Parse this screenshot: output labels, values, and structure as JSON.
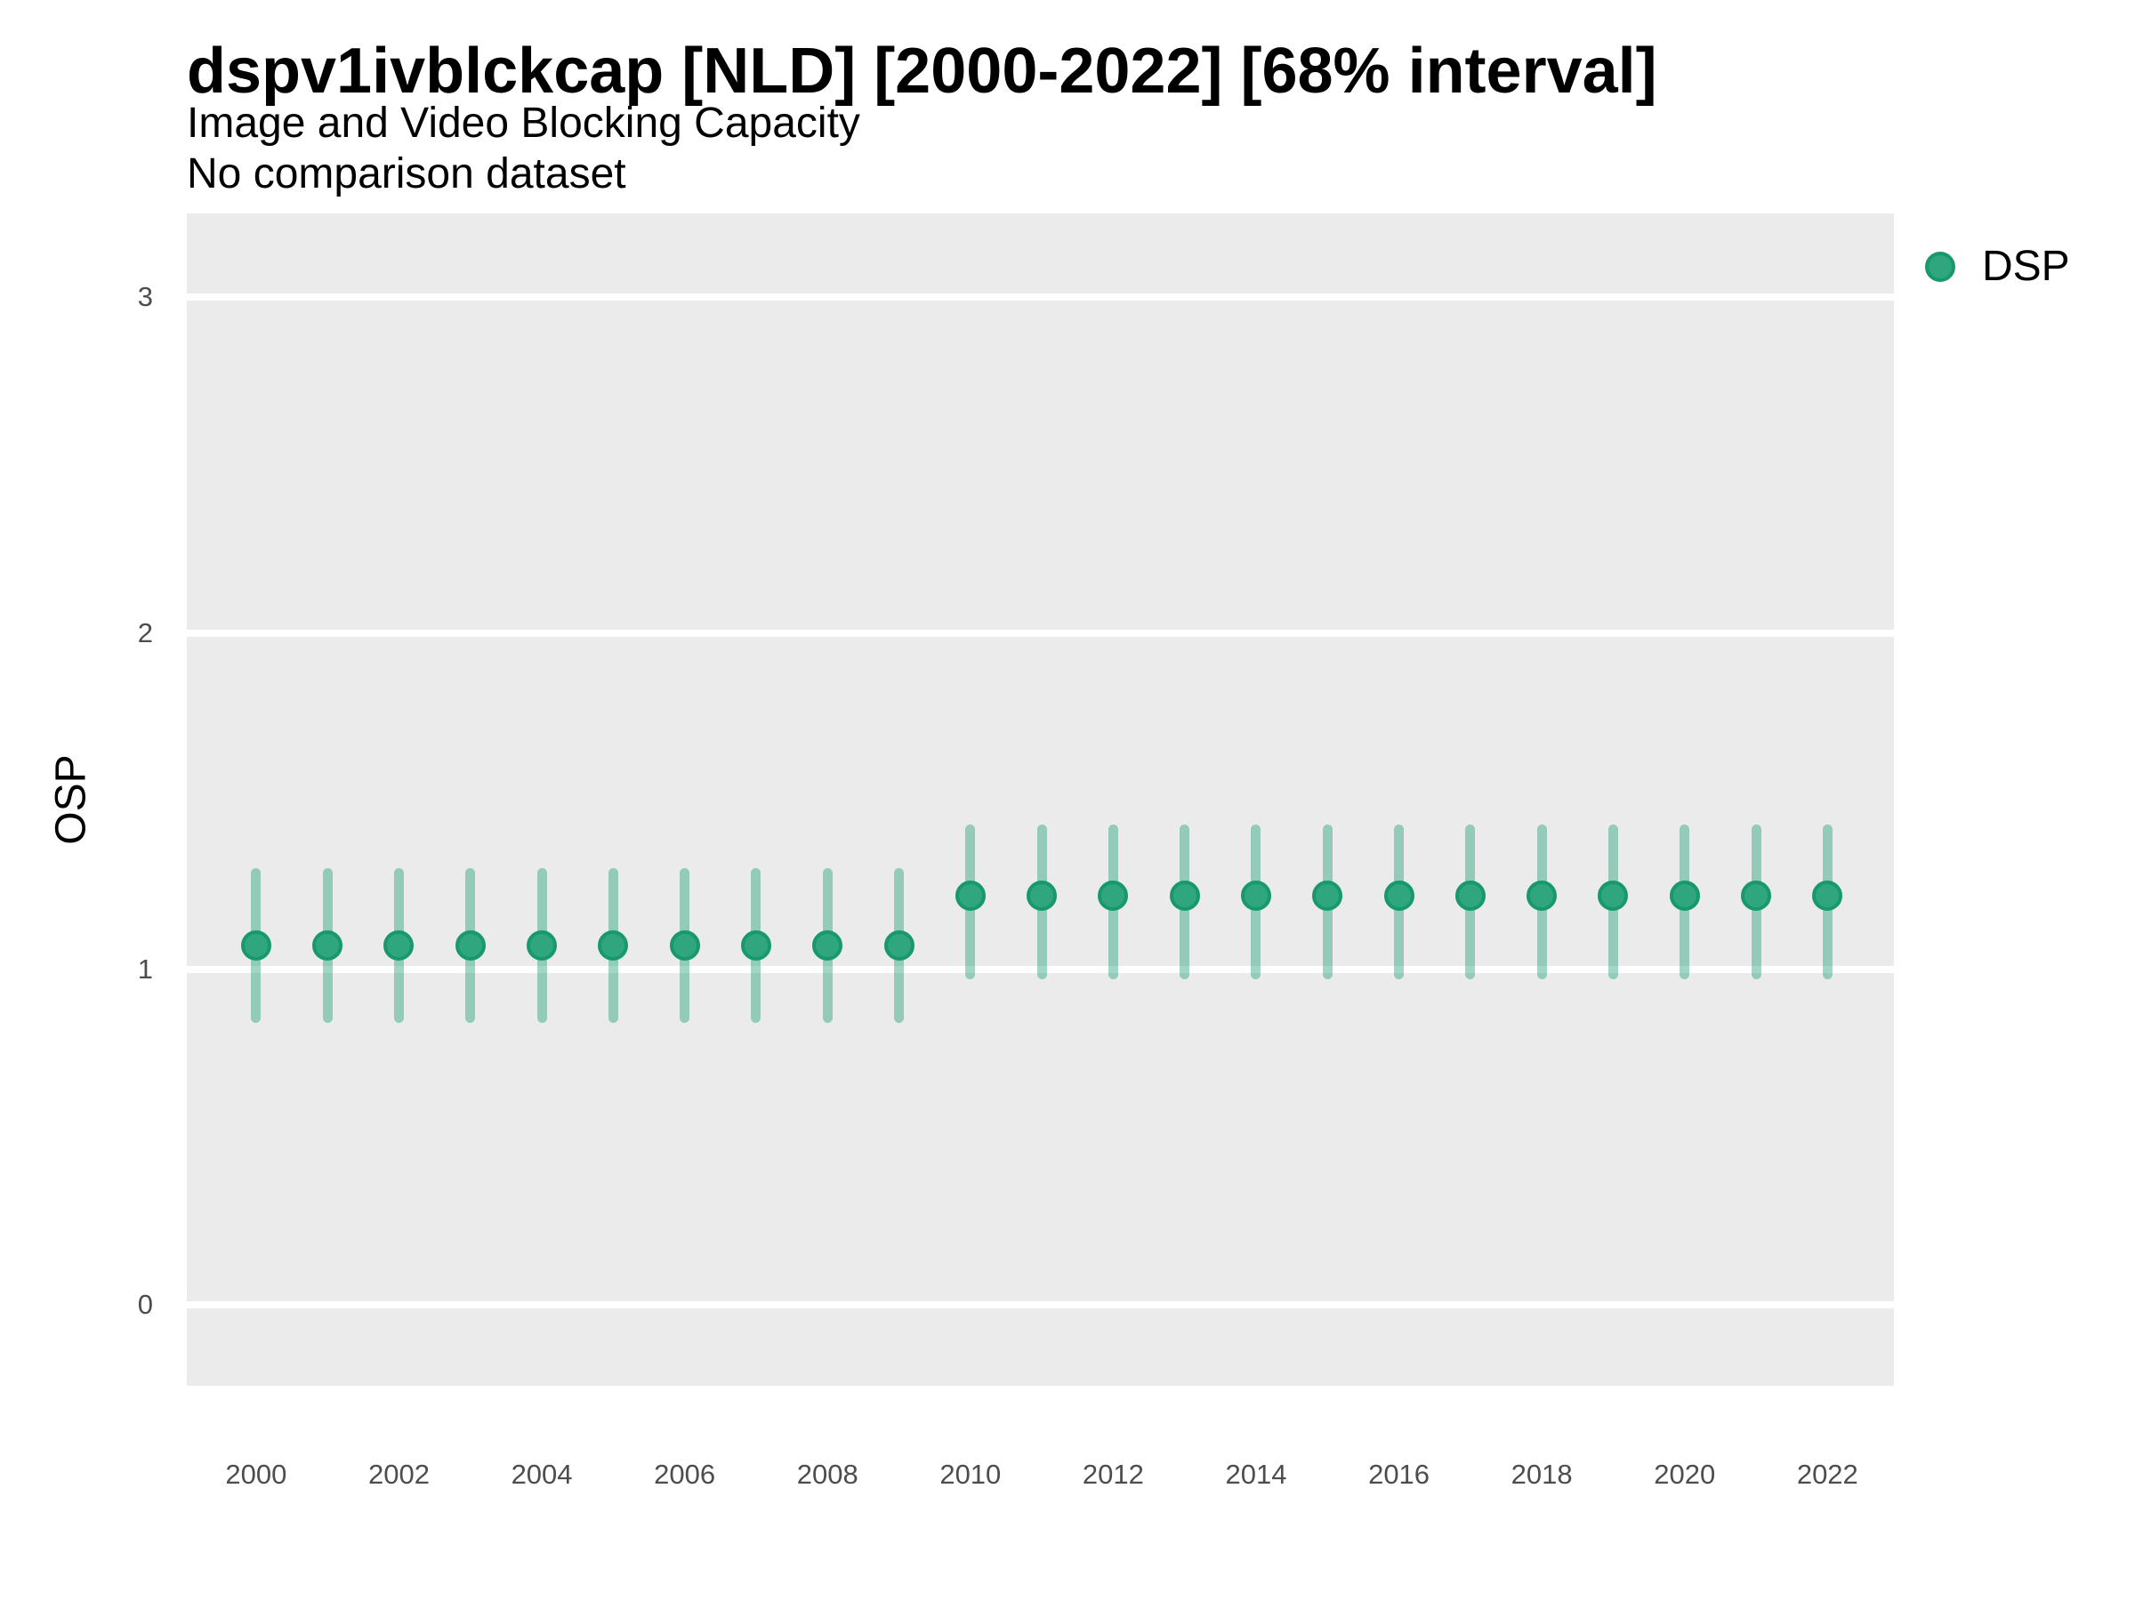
{
  "header": {
    "title": "dspv1ivblckcap [NLD] [2000-2022] [68% interval]",
    "subtitle": "Image and Video Blocking Capacity",
    "note": "No comparison dataset"
  },
  "axes": {
    "y_label": "OSP"
  },
  "legend": {
    "label": "DSP",
    "position": "right-top"
  },
  "colors": {
    "panel_bg": "#EBEBEB",
    "gridline": "#FFFFFF",
    "point_fill": "#2FA67E",
    "point_stroke": "#18996B",
    "errorbar": "rgba(27,158,119,0.42)",
    "tick_label": "#4D4D4D",
    "text": "#000000"
  },
  "chart_data": {
    "type": "scatter",
    "title": "dspv1ivblckcap [NLD] [2000-2022] [68% interval]",
    "subtitle": "Image and Video Blocking Capacity",
    "note": "No comparison dataset",
    "xlabel": "",
    "ylabel": "OSP",
    "interval_level": "68%",
    "grid": "horizontal-major-only",
    "legend_position": "right-top",
    "x": [
      2000,
      2001,
      2002,
      2003,
      2004,
      2005,
      2006,
      2007,
      2008,
      2009,
      2010,
      2011,
      2012,
      2013,
      2014,
      2015,
      2016,
      2017,
      2018,
      2019,
      2020,
      2021,
      2022
    ],
    "series": [
      {
        "name": "DSP",
        "values": [
          1.07,
          1.07,
          1.07,
          1.07,
          1.07,
          1.07,
          1.07,
          1.07,
          1.07,
          1.07,
          1.22,
          1.22,
          1.22,
          1.22,
          1.22,
          1.22,
          1.22,
          1.22,
          1.22,
          1.22,
          1.22,
          1.22,
          1.22
        ],
        "interval_low": [
          0.84,
          0.84,
          0.84,
          0.84,
          0.84,
          0.84,
          0.84,
          0.84,
          0.84,
          0.84,
          0.97,
          0.97,
          0.97,
          0.97,
          0.97,
          0.97,
          0.97,
          0.97,
          0.97,
          0.97,
          0.97,
          0.97,
          0.97
        ],
        "interval_high": [
          1.3,
          1.3,
          1.3,
          1.3,
          1.3,
          1.3,
          1.3,
          1.3,
          1.3,
          1.3,
          1.43,
          1.43,
          1.43,
          1.43,
          1.43,
          1.43,
          1.43,
          1.43,
          1.43,
          1.43,
          1.43,
          1.43,
          1.43
        ]
      }
    ],
    "x_ticks": [
      2000,
      2002,
      2004,
      2006,
      2008,
      2010,
      2012,
      2014,
      2016,
      2018,
      2020,
      2022
    ],
    "y_ticks": [
      0,
      1,
      2,
      3
    ],
    "xlim": [
      1999.03,
      2022.93
    ],
    "ylim": [
      -0.24,
      3.25
    ]
  }
}
